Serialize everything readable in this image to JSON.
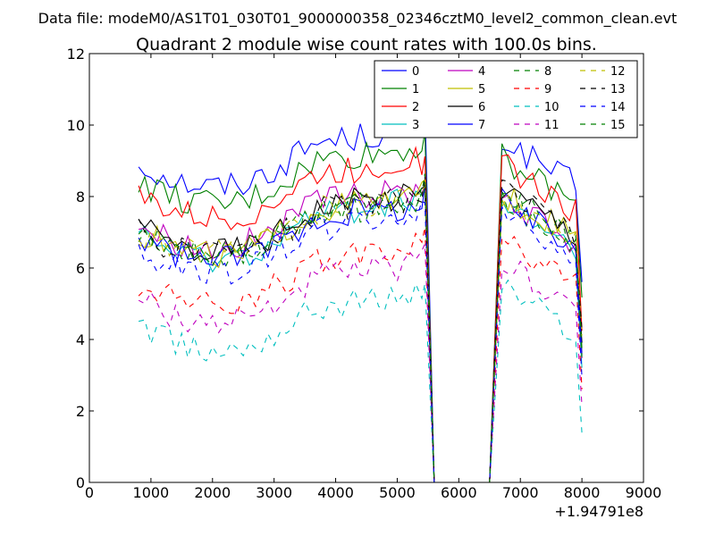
{
  "header": {
    "file_label": "Data file: modeM0/AS1T01_030T01_9000000358_02346cztM0_level2_common_clean.evt"
  },
  "chart_data": {
    "type": "line",
    "title": "Quadrant 2 module wise count rates with 100.0s bins.",
    "xlabel": "",
    "ylabel": "",
    "x_offset_label": "+1.94791e8",
    "xlim": [
      0,
      9000
    ],
    "ylim": [
      0,
      12
    ],
    "x_ticks": [
      0,
      1000,
      2000,
      3000,
      4000,
      5000,
      6000,
      7000,
      8000,
      9000
    ],
    "y_ticks": [
      0,
      2,
      4,
      6,
      8,
      10,
      12
    ],
    "x_tick_labels": [
      "0",
      "1000",
      "2000",
      "3000",
      "4000",
      "5000",
      "6000",
      "7000",
      "8000",
      "9000"
    ],
    "y_tick_labels": [
      "0",
      "2",
      "4",
      "6",
      "8",
      "10",
      "12"
    ],
    "grid": false,
    "legend_position": "top-right",
    "seg1": {
      "start": 800,
      "end": 5400,
      "step": 100
    },
    "seg2": {
      "start": 6700,
      "end": 7900,
      "step": 100
    },
    "gap_points": [
      [
        5450,
        10.4
      ],
      [
        5600,
        0
      ],
      [
        6500,
        0
      ],
      [
        6700,
        9.8
      ]
    ],
    "series": [
      {
        "name": "0",
        "color": "#0000ff",
        "dash": "solid",
        "level1": 8.9,
        "level2": 8.7
      },
      {
        "name": "1",
        "color": "#008000",
        "dash": "solid",
        "level1": 8.4,
        "level2": 8.2
      },
      {
        "name": "2",
        "color": "#ff0000",
        "dash": "solid",
        "level1": 8.0,
        "level2": 8.0
      },
      {
        "name": "3",
        "color": "#00bfbf",
        "dash": "solid",
        "level1": 6.9,
        "level2": 6.9
      },
      {
        "name": "4",
        "color": "#bf00bf",
        "dash": "solid",
        "level1": 7.2,
        "level2": 7.1
      },
      {
        "name": "5",
        "color": "#bfbf00",
        "dash": "solid",
        "level1": 7.0,
        "level2": 7.2
      },
      {
        "name": "6",
        "color": "#000000",
        "dash": "solid",
        "level1": 7.1,
        "level2": 7.4
      },
      {
        "name": "7",
        "color": "#0000ff",
        "dash": "solid",
        "level1": 6.8,
        "level2": 7.0
      },
      {
        "name": "8",
        "color": "#008000",
        "dash": "dashed",
        "level1": 6.9,
        "level2": 7.1
      },
      {
        "name": "9",
        "color": "#ff0000",
        "dash": "dashed",
        "level1": 5.6,
        "level2": 5.9
      },
      {
        "name": "10",
        "color": "#00bfbf",
        "dash": "dashed",
        "level1": 4.3,
        "level2": 4.6
      },
      {
        "name": "11",
        "color": "#bf00bf",
        "dash": "dashed",
        "level1": 5.1,
        "level2": 5.3
      },
      {
        "name": "12",
        "color": "#bfbf00",
        "dash": "dashed",
        "level1": 7.0,
        "level2": 7.2
      },
      {
        "name": "13",
        "color": "#000000",
        "dash": "dashed",
        "level1": 7.0,
        "level2": 7.3
      },
      {
        "name": "14",
        "color": "#0000ff",
        "dash": "dashed",
        "level1": 6.5,
        "level2": 6.7
      },
      {
        "name": "15",
        "color": "#008000",
        "dash": "dashed",
        "level1": 7.0,
        "level2": 7.2
      }
    ]
  }
}
